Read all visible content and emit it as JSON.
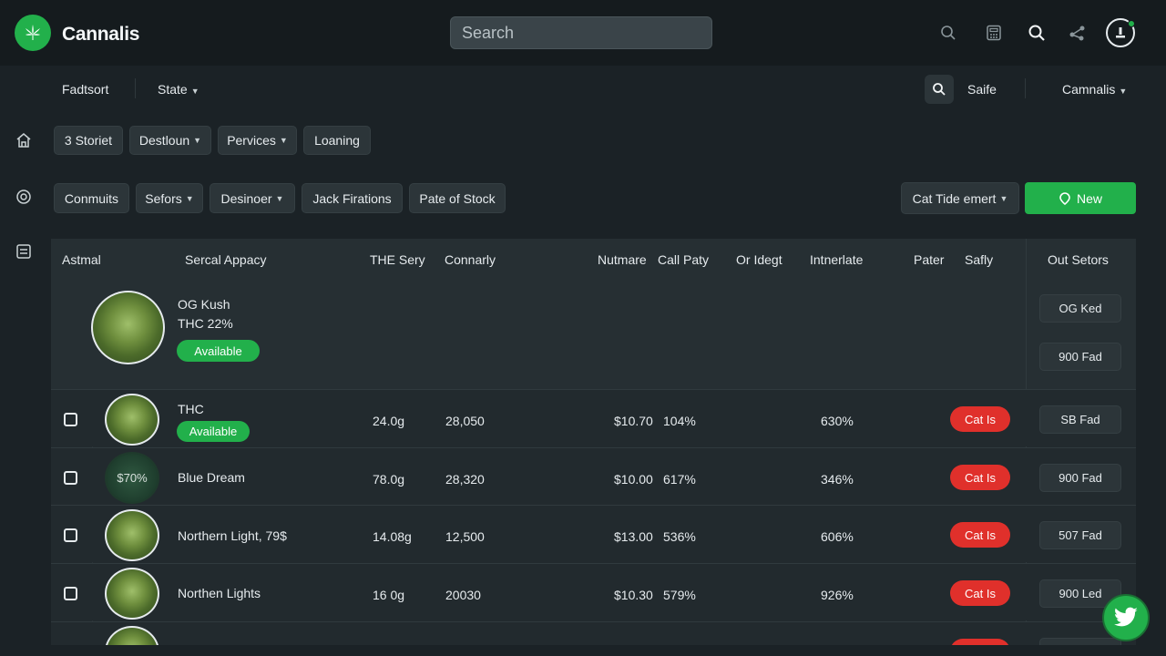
{
  "app": {
    "brand": "Cannalis"
  },
  "header": {
    "search_placeholder": "Search"
  },
  "subnav": {
    "left1": "Fadtsort",
    "left2": "State",
    "safe": "Saife",
    "account": "Camnalis"
  },
  "filters1": [
    "3 Storiet",
    "Destloun",
    "Pervices",
    "Loaning"
  ],
  "filters2": [
    "Conmuits",
    "Sefors",
    "Desinoer",
    "Jack Firations",
    "Pate of Stock"
  ],
  "sort_label": "Cat Tide emert",
  "new_label": "New",
  "columns": [
    "Astmal",
    "Sercal Appacy",
    "THE Sery",
    "Connarly",
    "Nutmare",
    "Call Paty",
    "Or Idegt",
    "Intnerlate",
    "Pater",
    "Safly",
    "Out Setors"
  ],
  "featured": {
    "name": "OG Kush",
    "thc": "THC 22%",
    "status": "Available",
    "action1": "OG Ked",
    "action2": "900 Fad"
  },
  "rows": [
    {
      "name": "THC",
      "status": "Available",
      "weight": "24.0g",
      "qty": "28,050",
      "price": "$10.70",
      "pct": "104%",
      "rate": "630%",
      "tag": "Cat Is",
      "action": "SB Fad",
      "thumb_text": ""
    },
    {
      "name": "Blue Dream",
      "status": "",
      "weight": "78.0g",
      "qty": "28,320",
      "price": "$10.00",
      "pct": "617%",
      "rate": "346%",
      "tag": "Cat Is",
      "action": "900 Fad",
      "thumb_text": "$70%"
    },
    {
      "name": "Northern Light, 79$",
      "status": "",
      "weight": "14.08g",
      "qty": "12,500",
      "price": "$13.00",
      "pct": "536%",
      "rate": "606%",
      "tag": "Cat Is",
      "action": "507 Fad",
      "thumb_text": ""
    },
    {
      "name": "Northen Lights",
      "status": "",
      "weight": "16 0g",
      "qty": "20030",
      "price": "$10.30",
      "pct": "579%",
      "rate": "926%",
      "tag": "Cat Is",
      "action": "900 Led",
      "thumb_text": ""
    }
  ],
  "colors": {
    "accent": "#22b04b",
    "danger": "#e0302b",
    "bg": "#1b2226",
    "topbar": "#151b1e"
  },
  "icons": {
    "top": [
      "search-icon",
      "calculator-icon",
      "search-alt-icon",
      "share-icon",
      "user-icon"
    ],
    "side": [
      "home-icon",
      "target-icon",
      "list-icon"
    ],
    "float": "twitter-icon"
  }
}
